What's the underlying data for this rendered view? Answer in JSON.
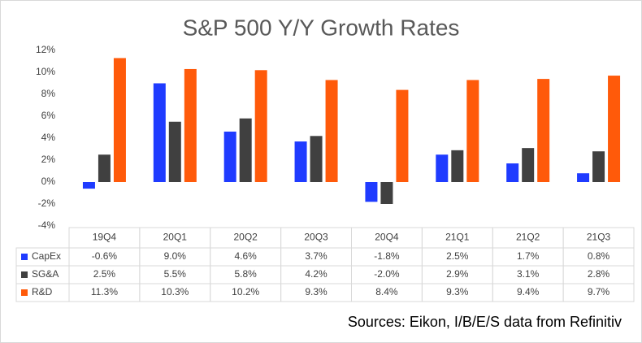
{
  "chart_data": {
    "type": "bar",
    "title": "S&P 500 Y/Y Growth Rates",
    "categories": [
      "19Q4",
      "20Q1",
      "20Q2",
      "20Q3",
      "20Q4",
      "21Q1",
      "21Q2",
      "21Q3"
    ],
    "series": [
      {
        "name": "CapEx",
        "color": "#1f3bff",
        "values": [
          -0.6,
          9.0,
          4.6,
          3.7,
          -1.8,
          2.5,
          1.7,
          0.8
        ],
        "value_labels": [
          "-0.6%",
          "9.0%",
          "4.6%",
          "3.7%",
          "-1.8%",
          "2.5%",
          "1.7%",
          "0.8%"
        ]
      },
      {
        "name": "SG&A",
        "color": "#404040",
        "values": [
          2.5,
          5.5,
          5.8,
          4.2,
          -2.0,
          2.9,
          3.1,
          2.8
        ],
        "value_labels": [
          "2.5%",
          "5.5%",
          "5.8%",
          "4.2%",
          "-2.0%",
          "2.9%",
          "3.1%",
          "2.8%"
        ]
      },
      {
        "name": "R&D",
        "color": "#ff5a0a",
        "values": [
          11.3,
          10.3,
          10.2,
          9.3,
          8.4,
          9.3,
          9.4,
          9.7
        ],
        "value_labels": [
          "11.3%",
          "10.3%",
          "10.2%",
          "9.3%",
          "8.4%",
          "9.3%",
          "9.4%",
          "9.7%"
        ]
      }
    ],
    "ylim": [
      -4,
      12
    ],
    "yticks": [
      {
        "value": -4,
        "label": "-4%"
      },
      {
        "value": -2,
        "label": "-2%"
      },
      {
        "value": 0,
        "label": "0%"
      },
      {
        "value": 2,
        "label": "2%"
      },
      {
        "value": 4,
        "label": "4%"
      },
      {
        "value": 6,
        "label": "6%"
      },
      {
        "value": 8,
        "label": "8%"
      },
      {
        "value": 10,
        "label": "10%"
      },
      {
        "value": 12,
        "label": "12%"
      }
    ],
    "grid": false,
    "source": "Sources: Eikon, I/B/E/S data from Refinitiv"
  }
}
